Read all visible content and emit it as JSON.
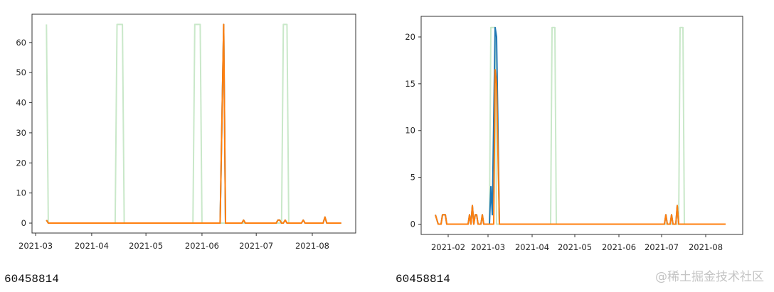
{
  "chart_data": [
    {
      "type": "line",
      "title": "",
      "xlabel": "",
      "ylabel": "",
      "ylim": [
        -3.3,
        69.4
      ],
      "xlim": [
        "2021-02-27",
        "2021-08-25"
      ],
      "yticks": [
        0,
        10,
        20,
        30,
        40,
        50,
        60
      ],
      "xticks": [
        "2021-03",
        "2021-04",
        "2021-05",
        "2021-06",
        "2021-07",
        "2021-08"
      ],
      "caption": "60458814",
      "series": [
        {
          "name": "green",
          "color": "#c9e8c9",
          "points": [
            [
              "2021-03-07",
              66
            ],
            [
              "2021-03-08",
              0
            ],
            [
              "2021-04-14",
              0
            ],
            [
              "2021-04-15",
              66
            ],
            [
              "2021-04-18",
              66
            ],
            [
              "2021-04-19",
              0
            ],
            [
              "2021-05-27",
              0
            ],
            [
              "2021-05-28",
              66
            ],
            [
              "2021-05-31",
              66
            ],
            [
              "2021-06-01",
              0
            ],
            [
              "2021-07-15",
              0
            ],
            [
              "2021-07-16",
              66
            ],
            [
              "2021-07-18",
              66
            ],
            [
              "2021-07-19",
              0
            ]
          ]
        },
        {
          "name": "blue",
          "color": "#1f77b4",
          "points": [
            [
              "2021-03-07",
              1
            ],
            [
              "2021-03-08",
              0
            ],
            [
              "2021-06-11",
              0
            ],
            [
              "2021-06-13",
              66
            ],
            [
              "2021-06-14",
              0
            ],
            [
              "2021-06-23",
              0
            ],
            [
              "2021-06-24",
              1
            ],
            [
              "2021-06-25",
              0
            ],
            [
              "2021-07-12",
              0
            ],
            [
              "2021-07-13",
              1
            ],
            [
              "2021-07-14",
              1
            ],
            [
              "2021-07-15",
              0
            ],
            [
              "2021-07-16",
              0
            ],
            [
              "2021-07-17",
              1
            ],
            [
              "2021-07-18",
              0
            ],
            [
              "2021-07-26",
              0
            ],
            [
              "2021-07-27",
              1
            ],
            [
              "2021-07-28",
              0
            ],
            [
              "2021-08-07",
              0
            ],
            [
              "2021-08-08",
              2
            ],
            [
              "2021-08-09",
              0
            ],
            [
              "2021-08-17",
              0
            ]
          ]
        },
        {
          "name": "orange",
          "color": "#ff7f0e",
          "points": [
            [
              "2021-03-07",
              1
            ],
            [
              "2021-03-08",
              0
            ],
            [
              "2021-06-11",
              0
            ],
            [
              "2021-06-13",
              66
            ],
            [
              "2021-06-14",
              0
            ],
            [
              "2021-06-23",
              0
            ],
            [
              "2021-06-24",
              1
            ],
            [
              "2021-06-25",
              0
            ],
            [
              "2021-07-12",
              0
            ],
            [
              "2021-07-13",
              1
            ],
            [
              "2021-07-14",
              1
            ],
            [
              "2021-07-15",
              0
            ],
            [
              "2021-07-16",
              0
            ],
            [
              "2021-07-17",
              1
            ],
            [
              "2021-07-18",
              0
            ],
            [
              "2021-07-26",
              0
            ],
            [
              "2021-07-27",
              1
            ],
            [
              "2021-07-28",
              0
            ],
            [
              "2021-08-07",
              0
            ],
            [
              "2021-08-08",
              2
            ],
            [
              "2021-08-09",
              0
            ],
            [
              "2021-08-17",
              0
            ]
          ]
        }
      ]
    },
    {
      "type": "line",
      "title": "",
      "xlabel": "",
      "ylabel": "",
      "ylim": [
        -1.1,
        22.2
      ],
      "xlim": [
        "2021-01-13",
        "2021-08-27"
      ],
      "yticks": [
        0,
        5,
        10,
        15,
        20
      ],
      "xticks": [
        "2021-02",
        "2021-03",
        "2021-04",
        "2021-05",
        "2021-06",
        "2021-07",
        "2021-08"
      ],
      "caption": "60458814",
      "series": [
        {
          "name": "green",
          "color": "#c9e8c9",
          "points": [
            [
              "2021-03-02",
              0
            ],
            [
              "2021-03-03",
              21
            ],
            [
              "2021-03-06",
              21
            ],
            [
              "2021-03-07",
              0
            ],
            [
              "2021-04-14",
              0
            ],
            [
              "2021-04-15",
              21
            ],
            [
              "2021-04-17",
              21
            ],
            [
              "2021-04-18",
              0
            ],
            [
              "2021-07-13",
              0
            ],
            [
              "2021-07-14",
              21
            ],
            [
              "2021-07-16",
              21
            ],
            [
              "2021-07-17",
              0
            ]
          ]
        },
        {
          "name": "blue",
          "color": "#1f77b4",
          "points": [
            [
              "2021-01-23",
              1
            ],
            [
              "2021-01-25",
              0
            ],
            [
              "2021-01-27",
              0
            ],
            [
              "2021-01-28",
              1
            ],
            [
              "2021-01-30",
              1
            ],
            [
              "2021-01-31",
              0
            ],
            [
              "2021-02-15",
              0
            ],
            [
              "2021-02-16",
              1
            ],
            [
              "2021-02-17",
              0
            ],
            [
              "2021-02-18",
              2
            ],
            [
              "2021-02-19",
              0
            ],
            [
              "2021-02-20",
              1
            ],
            [
              "2021-02-21",
              1
            ],
            [
              "2021-02-22",
              0
            ],
            [
              "2021-02-24",
              0
            ],
            [
              "2021-02-25",
              1
            ],
            [
              "2021-02-26",
              0
            ],
            [
              "2021-03-02",
              0
            ],
            [
              "2021-03-03",
              4
            ],
            [
              "2021-03-04",
              1
            ],
            [
              "2021-03-06",
              21
            ],
            [
              "2021-03-07",
              20
            ],
            [
              "2021-03-09",
              0
            ],
            [
              "2021-07-03",
              0
            ],
            [
              "2021-07-04",
              1
            ],
            [
              "2021-07-05",
              0
            ],
            [
              "2021-07-07",
              0
            ],
            [
              "2021-07-08",
              1
            ],
            [
              "2021-07-09",
              0
            ],
            [
              "2021-07-11",
              0
            ],
            [
              "2021-07-12",
              2
            ],
            [
              "2021-07-13",
              0
            ],
            [
              "2021-08-15",
              0
            ]
          ]
        },
        {
          "name": "orange",
          "color": "#ff7f0e",
          "points": [
            [
              "2021-01-23",
              1
            ],
            [
              "2021-01-25",
              0
            ],
            [
              "2021-01-27",
              0
            ],
            [
              "2021-01-28",
              1
            ],
            [
              "2021-01-30",
              1
            ],
            [
              "2021-01-31",
              0
            ],
            [
              "2021-02-15",
              0
            ],
            [
              "2021-02-16",
              1
            ],
            [
              "2021-02-17",
              0
            ],
            [
              "2021-02-18",
              2
            ],
            [
              "2021-02-19",
              0
            ],
            [
              "2021-02-20",
              1
            ],
            [
              "2021-02-21",
              1
            ],
            [
              "2021-02-22",
              0
            ],
            [
              "2021-02-24",
              0
            ],
            [
              "2021-02-25",
              1
            ],
            [
              "2021-02-26",
              0
            ],
            [
              "2021-03-05",
              0
            ],
            [
              "2021-03-06",
              16.5
            ],
            [
              "2021-03-07",
              15
            ],
            [
              "2021-03-09",
              0
            ],
            [
              "2021-07-03",
              0
            ],
            [
              "2021-07-04",
              1
            ],
            [
              "2021-07-05",
              0
            ],
            [
              "2021-07-07",
              0
            ],
            [
              "2021-07-08",
              1
            ],
            [
              "2021-07-09",
              0
            ],
            [
              "2021-07-11",
              0
            ],
            [
              "2021-07-12",
              2
            ],
            [
              "2021-07-13",
              0
            ],
            [
              "2021-08-15",
              0
            ]
          ]
        }
      ]
    }
  ],
  "watermark": "@稀土掘金技术社区"
}
